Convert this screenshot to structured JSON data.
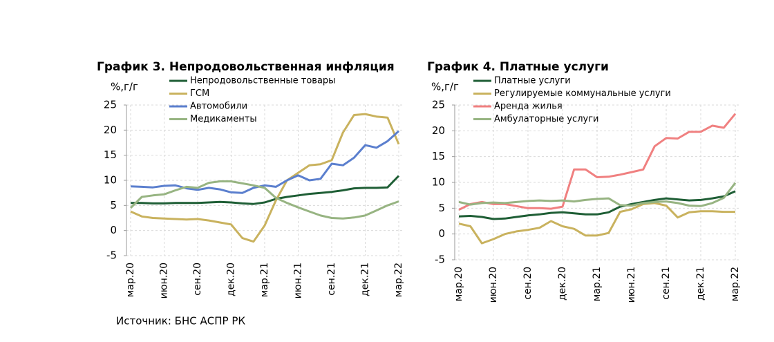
{
  "chart_data": [
    {
      "type": "line",
      "title": "График 3. Непродовольственная инфляция",
      "y_label": "%,г/г",
      "categories": [
        "мар.20",
        null,
        null,
        "июн.20",
        null,
        null,
        "сен.20",
        null,
        null,
        "дек.20",
        null,
        null,
        "мар.21",
        null,
        null,
        "июн.21",
        null,
        null,
        "сен.21",
        null,
        null,
        "дек.21",
        null,
        null,
        "мар.22"
      ],
      "series": [
        {
          "name": "Непродовольственные товары",
          "color": "#1e5e35",
          "values": [
            5.5,
            5.5,
            5.4,
            5.4,
            5.5,
            5.5,
            5.5,
            5.6,
            5.7,
            5.6,
            5.4,
            5.3,
            5.6,
            6.3,
            6.7,
            7.0,
            7.3,
            7.5,
            7.7,
            8.0,
            8.4,
            8.5,
            8.5,
            8.6,
            10.9
          ]
        },
        {
          "name": "ГСМ",
          "color": "#c9b25e",
          "values": [
            3.8,
            2.8,
            2.5,
            2.4,
            2.3,
            2.2,
            2.3,
            2.0,
            1.6,
            1.2,
            -1.5,
            -2.2,
            1.0,
            6.0,
            10.0,
            11.5,
            13.0,
            13.2,
            14.0,
            19.5,
            23.0,
            23.2,
            22.7,
            22.5,
            17.2
          ]
        },
        {
          "name": "Автомобили",
          "color": "#5b7fce",
          "values": [
            8.8,
            8.7,
            8.6,
            8.9,
            9.0,
            8.4,
            8.1,
            8.5,
            8.2,
            7.6,
            7.5,
            8.5,
            9.0,
            8.7,
            10.0,
            11.0,
            10.0,
            10.3,
            13.3,
            13.0,
            14.5,
            17.0,
            16.5,
            17.8,
            19.8
          ]
        },
        {
          "name": "Медикаменты",
          "color": "#97b482",
          "values": [
            4.5,
            6.7,
            7.0,
            7.2,
            8.0,
            8.7,
            8.5,
            9.5,
            9.8,
            9.8,
            9.4,
            9.0,
            8.5,
            6.5,
            5.5,
            4.6,
            3.8,
            3.0,
            2.5,
            2.4,
            2.6,
            3.0,
            4.0,
            5.0,
            5.8
          ]
        }
      ],
      "ylim": [
        -5,
        25
      ],
      "yticks": [
        -5,
        0,
        5,
        10,
        15,
        20,
        25
      ],
      "grid": true
    },
    {
      "type": "line",
      "title": "График 4. Платные услуги",
      "y_label": "%,г/г",
      "categories": [
        "мар.20",
        null,
        null,
        "июн.20",
        null,
        null,
        "сен.20",
        null,
        null,
        "дек.20",
        null,
        null,
        "мар.21",
        null,
        null,
        "июн.21",
        null,
        null,
        "сен.21",
        null,
        null,
        "дек.21",
        null,
        null,
        "мар.22"
      ],
      "series": [
        {
          "name": "Платные услуги",
          "color": "#1e5e35",
          "values": [
            3.4,
            3.5,
            3.3,
            2.9,
            3.0,
            3.3,
            3.6,
            3.8,
            4.1,
            4.2,
            4.0,
            3.8,
            3.8,
            4.2,
            5.3,
            5.8,
            6.2,
            6.6,
            6.9,
            6.7,
            6.5,
            6.6,
            6.9,
            7.3,
            8.3
          ]
        },
        {
          "name": "Регулируемые коммунальные услуги",
          "color": "#c9b25e",
          "values": [
            2.0,
            1.5,
            -1.8,
            -1.0,
            0.0,
            0.5,
            0.8,
            1.2,
            2.5,
            1.5,
            1.0,
            -0.3,
            -0.3,
            0.2,
            4.3,
            4.8,
            5.8,
            6.0,
            5.5,
            3.2,
            4.2,
            4.4,
            4.4,
            4.3,
            4.3
          ]
        },
        {
          "name": "Аренда жилья",
          "color": "#f08080",
          "values": [
            4.7,
            5.8,
            6.2,
            5.8,
            5.8,
            5.4,
            5.0,
            5.0,
            4.9,
            5.3,
            12.5,
            12.5,
            11.0,
            11.1,
            11.5,
            12.0,
            12.5,
            17.0,
            18.6,
            18.5,
            19.8,
            19.8,
            21.0,
            20.6,
            23.3
          ]
        },
        {
          "name": "Амбулаторные услуги",
          "color": "#97b482",
          "values": [
            6.2,
            5.7,
            6.0,
            6.1,
            6.0,
            6.2,
            6.4,
            6.5,
            6.4,
            6.5,
            6.3,
            6.6,
            6.8,
            6.9,
            5.6,
            5.5,
            6.0,
            6.2,
            6.3,
            6.0,
            5.5,
            5.4,
            6.0,
            7.0,
            9.9
          ]
        }
      ],
      "ylim": [
        -5,
        25
      ],
      "yticks": [
        -5,
        0,
        5,
        10,
        15,
        20,
        25
      ],
      "grid": true
    }
  ],
  "source": "Источник: БНС АСПР РК"
}
